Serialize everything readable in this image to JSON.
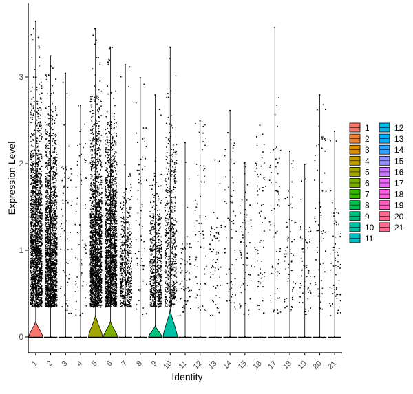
{
  "chart_data": {
    "type": "violin",
    "title": "",
    "xlabel": "Identity",
    "ylabel": "Expression Level",
    "ylim": [
      -0.18,
      3.85
    ],
    "yticks": [
      0,
      1,
      2,
      3
    ],
    "grid": false,
    "legend_position": "right",
    "categories": [
      "1",
      "2",
      "3",
      "4",
      "5",
      "6",
      "7",
      "8",
      "9",
      "10",
      "11",
      "12",
      "13",
      "14",
      "15",
      "16",
      "17",
      "18",
      "19",
      "20",
      "21"
    ],
    "colors": [
      "#F8766D",
      "#E8853A",
      "#D89000",
      "#BE9C00",
      "#A3A500",
      "#7CAE00",
      "#39B600",
      "#00BB4E",
      "#00BF7D",
      "#00C1A3",
      "#00BFC4",
      "#00BAE0",
      "#00B0F6",
      "#35A2FF",
      "#9590FF",
      "#C77CFF",
      "#E76BF3",
      "#FA62DB",
      "#FF62BC",
      "#FF6C91",
      "#FF6C91"
    ],
    "series": [
      {
        "name": "1",
        "max": 3.65,
        "density": "high",
        "upper_mass": 2.95,
        "violin_width": 0.95,
        "violin_height": 0.18
      },
      {
        "name": "2",
        "max": 3.25,
        "density": "high",
        "upper_mass": 2.7,
        "violin_width": 0.05,
        "violin_height": 0.02
      },
      {
        "name": "3",
        "max": 3.05,
        "density": "low",
        "upper_mass": 2.0,
        "violin_width": 0.05,
        "violin_height": 0.01
      },
      {
        "name": "4",
        "max": 2.68,
        "density": "low",
        "upper_mass": 2.3,
        "violin_width": 0.05,
        "violin_height": 0.01
      },
      {
        "name": "5",
        "max": 3.57,
        "density": "high",
        "upper_mass": 2.85,
        "violin_width": 0.95,
        "violin_height": 0.25
      },
      {
        "name": "6",
        "max": 3.35,
        "density": "high",
        "upper_mass": 2.6,
        "violin_width": 0.95,
        "violin_height": 0.18
      },
      {
        "name": "7",
        "max": 3.15,
        "density": "medium",
        "upper_mass": 1.9,
        "violin_width": 0.05,
        "violin_height": 0.02
      },
      {
        "name": "8",
        "max": 3.0,
        "density": "low",
        "upper_mass": 2.4,
        "violin_width": 0.05,
        "violin_height": 0.01
      },
      {
        "name": "9",
        "max": 2.8,
        "density": "medium",
        "upper_mass": 1.9,
        "violin_width": 0.9,
        "violin_height": 0.13
      },
      {
        "name": "10",
        "max": 3.35,
        "density": "medium",
        "upper_mass": 2.8,
        "violin_width": 0.95,
        "violin_height": 0.32
      },
      {
        "name": "11",
        "max": 2.25,
        "density": "low",
        "upper_mass": 1.1,
        "violin_width": 0.05,
        "violin_height": 0.01
      },
      {
        "name": "12",
        "max": 2.5,
        "density": "low",
        "upper_mass": 2.4,
        "violin_width": 0.05,
        "violin_height": 0.01
      },
      {
        "name": "13",
        "max": 2.05,
        "density": "low",
        "upper_mass": 1.3,
        "violin_width": 0.05,
        "violin_height": 0.01
      },
      {
        "name": "14",
        "max": 2.62,
        "density": "low",
        "upper_mass": 2.2,
        "violin_width": 0.05,
        "violin_height": 0.01
      },
      {
        "name": "15",
        "max": 2.02,
        "density": "low",
        "upper_mass": 1.7,
        "violin_width": 0.05,
        "violin_height": 0.01
      },
      {
        "name": "16",
        "max": 2.45,
        "density": "low",
        "upper_mass": 2.2,
        "violin_width": 0.05,
        "violin_height": 0.01
      },
      {
        "name": "17",
        "max": 3.58,
        "density": "low",
        "upper_mass": 2.2,
        "violin_width": 0.05,
        "violin_height": 0.01
      },
      {
        "name": "18",
        "max": 2.15,
        "density": "low",
        "upper_mass": 1.7,
        "violin_width": 0.05,
        "violin_height": 0.01
      },
      {
        "name": "19",
        "max": 2.0,
        "density": "low",
        "upper_mass": 1.3,
        "violin_width": 0.05,
        "violin_height": 0.01
      },
      {
        "name": "20",
        "max": 2.8,
        "density": "low",
        "upper_mass": 2.4,
        "violin_width": 0.05,
        "violin_height": 0.01
      },
      {
        "name": "21",
        "max": 2.38,
        "density": "low",
        "upper_mass": 1.5,
        "violin_width": 0.05,
        "violin_height": 0.01
      }
    ]
  },
  "legend": {
    "col1": [
      "1",
      "2",
      "3",
      "4",
      "5",
      "6",
      "7",
      "8",
      "9",
      "10",
      "11"
    ],
    "col2": [
      "12",
      "13",
      "14",
      "15",
      "16",
      "17",
      "18",
      "19",
      "20",
      "21"
    ]
  }
}
